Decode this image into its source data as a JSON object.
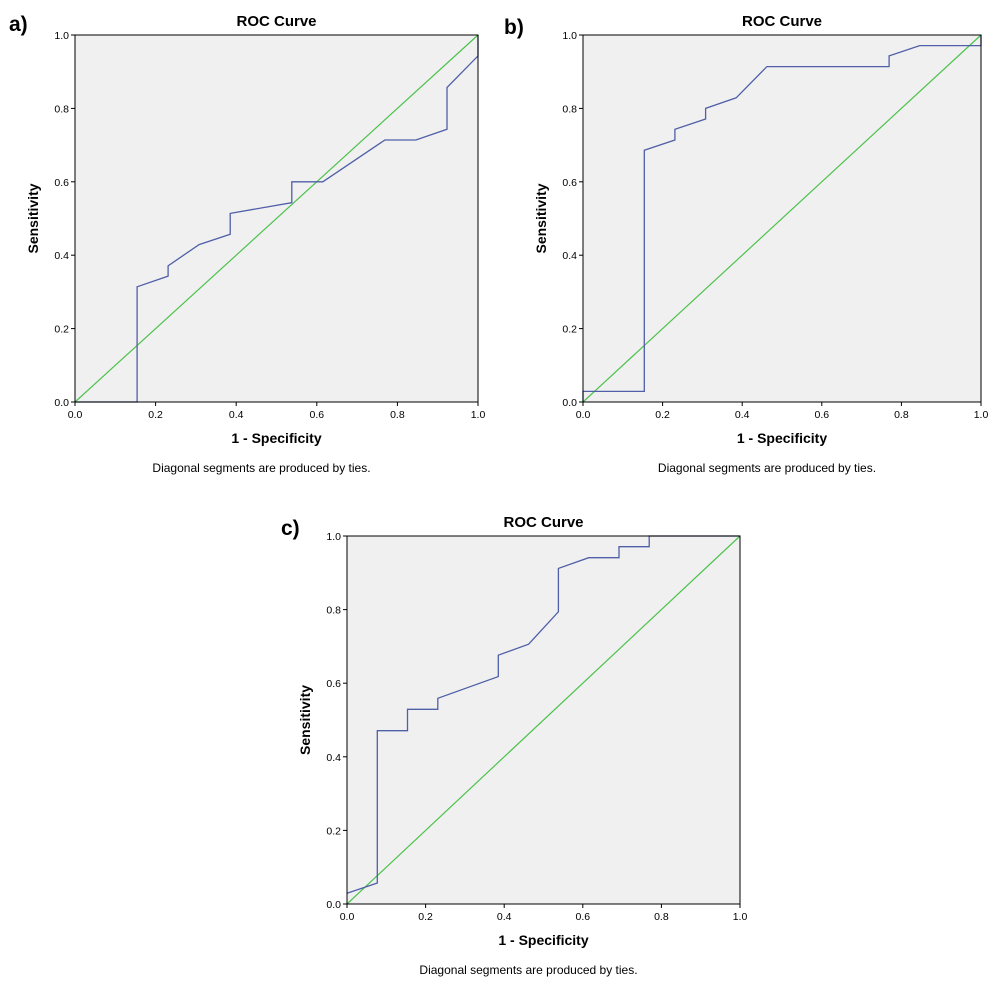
{
  "chart_data": [
    {
      "panel_label": "a)",
      "type": "line",
      "title": "ROC Curve",
      "xlabel": "1 - Specificity",
      "ylabel": "Sensitivity",
      "footnote": "Diagonal segments are produced by ties.",
      "xlim": [
        0,
        1
      ],
      "ylim": [
        0,
        1
      ],
      "xticks": [
        "0.0",
        "0.2",
        "0.4",
        "0.6",
        "0.8",
        "1.0"
      ],
      "yticks": [
        "0.0",
        "0.2",
        "0.4",
        "0.6",
        "0.8",
        "1.0"
      ],
      "grid": false,
      "curve_color": "#4f5fa8",
      "reference_color": "#4cc24c",
      "background_color": "#f0f0f0",
      "roc_curve": {
        "x": [
          0,
          0.154,
          0.154,
          0.231,
          0.231,
          0.308,
          0.385,
          0.385,
          0.538,
          0.538,
          0.615,
          0.769,
          0.846,
          0.923,
          0.923,
          1.0,
          1.0
        ],
        "y": [
          0,
          0,
          0.314,
          0.343,
          0.371,
          0.429,
          0.457,
          0.514,
          0.543,
          0.6,
          0.6,
          0.714,
          0.714,
          0.743,
          0.857,
          0.943,
          1.0
        ]
      },
      "reference_line": {
        "x": [
          0,
          1
        ],
        "y": [
          0,
          1
        ]
      }
    },
    {
      "panel_label": "b)",
      "type": "line",
      "title": "ROC Curve",
      "xlabel": "1 - Specificity",
      "ylabel": "Sensitivity",
      "footnote": "Diagonal segments are produced by ties.",
      "xlim": [
        0,
        1
      ],
      "ylim": [
        0,
        1
      ],
      "xticks": [
        "0.0",
        "0.2",
        "0.4",
        "0.6",
        "0.8",
        "1.0"
      ],
      "yticks": [
        "0.0",
        "0.2",
        "0.4",
        "0.6",
        "0.8",
        "1.0"
      ],
      "grid": false,
      "curve_color": "#4f5fa8",
      "reference_color": "#4cc24c",
      "background_color": "#f0f0f0",
      "roc_curve": {
        "x": [
          0,
          0,
          0.154,
          0.154,
          0.231,
          0.231,
          0.308,
          0.308,
          0.385,
          0.462,
          0.769,
          0.769,
          0.846,
          1.0,
          1.0
        ],
        "y": [
          0,
          0.029,
          0.029,
          0.686,
          0.714,
          0.743,
          0.771,
          0.8,
          0.829,
          0.914,
          0.914,
          0.943,
          0.971,
          0.971,
          1.0
        ]
      },
      "reference_line": {
        "x": [
          0,
          1
        ],
        "y": [
          0,
          1
        ]
      }
    },
    {
      "panel_label": "c)",
      "type": "line",
      "title": "ROC Curve",
      "xlabel": "1 - Specificity",
      "ylabel": "Sensitivity",
      "footnote": "Diagonal segments are produced by ties.",
      "xlim": [
        0,
        1
      ],
      "ylim": [
        0,
        1
      ],
      "xticks": [
        "0.0",
        "0.2",
        "0.4",
        "0.6",
        "0.8",
        "1.0"
      ],
      "yticks": [
        "0.0",
        "0.2",
        "0.4",
        "0.6",
        "0.8",
        "1.0"
      ],
      "grid": false,
      "curve_color": "#4f5fa8",
      "reference_color": "#4cc24c",
      "background_color": "#f0f0f0",
      "roc_curve": {
        "x": [
          0,
          0.077,
          0.077,
          0.154,
          0.154,
          0.231,
          0.231,
          0.385,
          0.385,
          0.462,
          0.538,
          0.538,
          0.615,
          0.692,
          0.692,
          0.769,
          0.769,
          1.0
        ],
        "y": [
          0.029,
          0.057,
          0.471,
          0.471,
          0.529,
          0.529,
          0.559,
          0.618,
          0.676,
          0.706,
          0.794,
          0.912,
          0.941,
          0.941,
          0.971,
          0.971,
          1.0,
          1.0
        ]
      },
      "reference_line": {
        "x": [
          0,
          1
        ],
        "y": [
          0,
          1
        ]
      }
    }
  ]
}
